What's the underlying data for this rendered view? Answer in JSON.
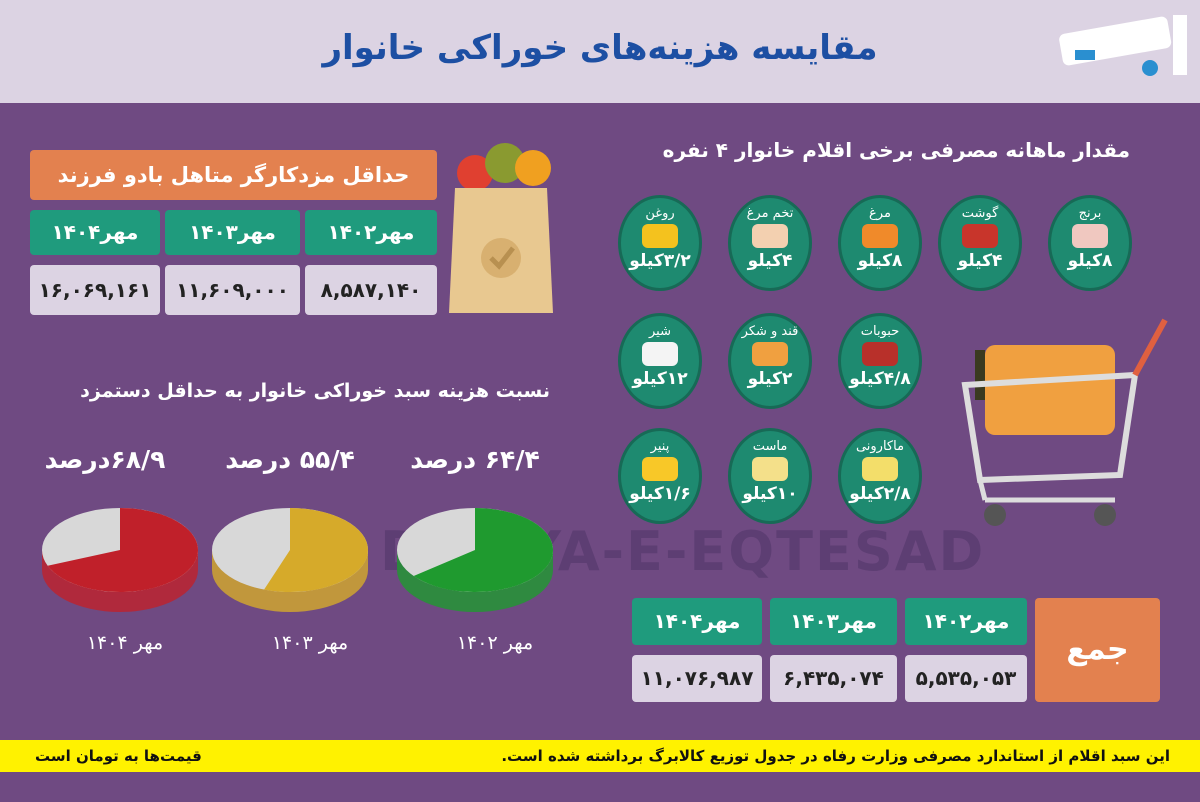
{
  "header": {
    "title": "مقایسه هزینه‌های خوراکی خانوار"
  },
  "wage": {
    "title": "حداقل مزدکارگر متاهل بادو فرزند",
    "columns": [
      "مهر۱۴۰۲",
      "مهر۱۴۰۳",
      "مهر۱۴۰۴"
    ],
    "values": [
      "۸,۵۸۷,۱۴۰",
      "۱۱,۶۰۹,۰۰۰",
      "۱۶,۰۶۹,۱۶۱"
    ]
  },
  "ratio": {
    "title": "نسبت هزینه سبد خوراکی خانوار به حداقل دستمزد"
  },
  "chart_data": {
    "type": "pie",
    "categories": [
      "مهر ۱۴۰۲",
      "مهر ۱۴۰۳",
      "مهر ۱۴۰۴"
    ],
    "values": [
      64.4,
      55.4,
      68.9
    ],
    "labels": [
      "۶۴/۴ درصد",
      "۵۵/۴ درصد",
      "۶۸/۹درصد"
    ],
    "colors": [
      "#1f9a2f",
      "#d6aa2a",
      "#c0202a"
    ],
    "remainder_color": "#d8d8d8"
  },
  "consumption": {
    "title": "مقدار ماهانه مصرفی برخی اقلام خانوار ۴ نفره",
    "items": [
      {
        "name": "برنج",
        "qty": "۸کیلو",
        "color": "#f0c8c0"
      },
      {
        "name": "گوشت",
        "qty": "۴کیلو",
        "color": "#c8352b"
      },
      {
        "name": "مرغ",
        "qty": "۸کیلو",
        "color": "#f08a2a"
      },
      {
        "name": "تخم مرغ",
        "qty": "۴کیلو",
        "color": "#f3d0b0"
      },
      {
        "name": "روغن",
        "qty": "۳/۲کیلو",
        "color": "#f4c21e"
      },
      {
        "name": "حبوبات",
        "qty": "۴/۸کیلو",
        "color": "#b8302a"
      },
      {
        "name": "قند و شکر",
        "qty": "۲کیلو",
        "color": "#f0a040"
      },
      {
        "name": "شیر",
        "qty": "۱۲کیلو",
        "color": "#f4f4f4"
      },
      {
        "name": "ماکارونی",
        "qty": "۲/۸کیلو",
        "color": "#f3de6a"
      },
      {
        "name": "ماست",
        "qty": "۱۰کیلو",
        "color": "#f4e08a"
      },
      {
        "name": "پنیر",
        "qty": "۱/۶کیلو",
        "color": "#f8c828"
      }
    ]
  },
  "total": {
    "label": "جمع",
    "columns": [
      "مهر۱۴۰۲",
      "مهر۱۴۰۳",
      "مهر۱۴۰۴"
    ],
    "values": [
      "۵,۵۳۵,۰۵۳",
      "۶,۴۳۵,۰۷۴",
      "۱۱,۰۷۶,۹۸۷"
    ]
  },
  "footer": {
    "note": "این سبد اقلام از استاندارد مصرفی وزارت رفاه در جدول توزیع کالابرگ برداشته شده است.",
    "currency": "قیمت‌ها به تومان است"
  },
  "watermark": "DONYA-E-EQTESAD"
}
